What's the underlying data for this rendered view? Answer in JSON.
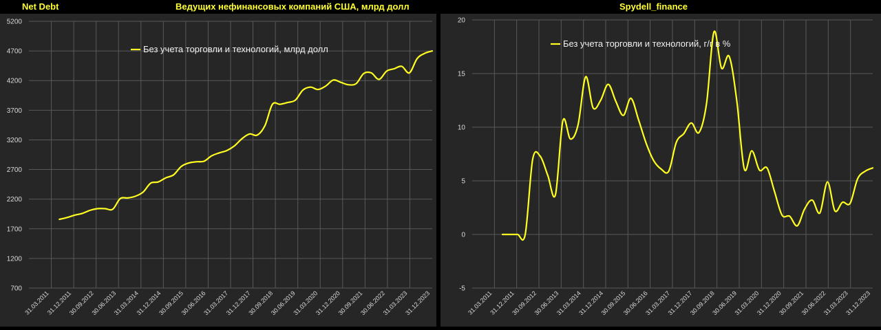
{
  "header": {
    "left_label": "Net Debt",
    "left_title": "Ведущих нефинансовых компаний США, млрд долл",
    "right_title": "Spydell_finance"
  },
  "colors": {
    "series": "#ffff22",
    "grid": "#595959",
    "axis_text": "#d9d9d9",
    "panel_bg": "#262626"
  },
  "chart_data": [
    {
      "type": "line",
      "title": "Ведущих нефинансовых компаний США, млрд долл",
      "x_tick_labels": [
        "31.03.2011",
        "31.12.2011",
        "30.09.2012",
        "30.06.2013",
        "31.03.2014",
        "31.12.2014",
        "30.09.2015",
        "30.06.2016",
        "31.03.2017",
        "31.12.2017",
        "30.09.2018",
        "30.06.2019",
        "31.03.2020",
        "31.12.2020",
        "30.09.2021",
        "30.06.2022",
        "31.03.2023",
        "31.12.2023"
      ],
      "x_range": [
        "2011-03-31",
        "2024-06-30"
      ],
      "ylim": [
        700,
        5200
      ],
      "yticks": [
        700,
        1200,
        1700,
        2200,
        2700,
        3200,
        3700,
        4200,
        4700,
        5200
      ],
      "grid": true,
      "legend_position": "top-center",
      "series": [
        {
          "name": "Без учета торговли и технологий, млрд долл",
          "points": [
            [
              "2012-03-31",
              1860
            ],
            [
              "2012-06-30",
              1890
            ],
            [
              "2012-09-30",
              1930
            ],
            [
              "2012-12-31",
              1960
            ],
            [
              "2013-03-31",
              2010
            ],
            [
              "2013-06-30",
              2040
            ],
            [
              "2013-09-30",
              2040
            ],
            [
              "2013-12-31",
              2030
            ],
            [
              "2014-03-31",
              2210
            ],
            [
              "2014-06-30",
              2220
            ],
            [
              "2014-09-30",
              2250
            ],
            [
              "2014-12-31",
              2320
            ],
            [
              "2015-03-31",
              2470
            ],
            [
              "2015-06-30",
              2490
            ],
            [
              "2015-09-30",
              2560
            ],
            [
              "2015-12-31",
              2610
            ],
            [
              "2016-03-31",
              2750
            ],
            [
              "2016-06-30",
              2810
            ],
            [
              "2016-09-30",
              2830
            ],
            [
              "2016-12-31",
              2840
            ],
            [
              "2017-03-31",
              2930
            ],
            [
              "2017-06-30",
              2980
            ],
            [
              "2017-09-30",
              3020
            ],
            [
              "2017-12-31",
              3100
            ],
            [
              "2018-03-31",
              3220
            ],
            [
              "2018-06-30",
              3300
            ],
            [
              "2018-09-30",
              3280
            ],
            [
              "2018-12-31",
              3440
            ],
            [
              "2019-03-31",
              3800
            ],
            [
              "2019-06-30",
              3800
            ],
            [
              "2019-09-30",
              3830
            ],
            [
              "2019-12-31",
              3870
            ],
            [
              "2020-03-31",
              4040
            ],
            [
              "2020-06-30",
              4090
            ],
            [
              "2020-09-30",
              4050
            ],
            [
              "2020-12-31",
              4110
            ],
            [
              "2021-03-31",
              4210
            ],
            [
              "2021-06-30",
              4170
            ],
            [
              "2021-09-30",
              4130
            ],
            [
              "2021-12-31",
              4150
            ],
            [
              "2022-03-31",
              4320
            ],
            [
              "2022-06-30",
              4330
            ],
            [
              "2022-09-30",
              4220
            ],
            [
              "2022-12-31",
              4360
            ],
            [
              "2023-03-31",
              4400
            ],
            [
              "2023-06-30",
              4440
            ],
            [
              "2023-09-30",
              4330
            ],
            [
              "2023-12-31",
              4570
            ],
            [
              "2024-03-31",
              4660
            ],
            [
              "2024-06-30",
              4700
            ]
          ]
        }
      ]
    },
    {
      "type": "line",
      "title": "",
      "x_tick_labels": [
        "31.03.2011",
        "31.12.2011",
        "30.09.2012",
        "30.06.2013",
        "31.03.2014",
        "31.12.2014",
        "30.09.2015",
        "30.06.2016",
        "31.03.2017",
        "31.12.2017",
        "30.09.2018",
        "30.06.2019",
        "31.03.2020",
        "31.12.2020",
        "30.09.2021",
        "30.06.2022",
        "31.03.2023",
        "31.12.2023"
      ],
      "x_range": [
        "2011-03-31",
        "2024-06-30"
      ],
      "ylim": [
        -5,
        20
      ],
      "yticks": [
        -5,
        0,
        5,
        10,
        15,
        20
      ],
      "grid": true,
      "legend_position": "top-center",
      "series": [
        {
          "name": "Без учета торговли и технологий, г/г в %",
          "points": [
            [
              "2012-03-31",
              0
            ],
            [
              "2012-06-30",
              0
            ],
            [
              "2012-09-30",
              0
            ],
            [
              "2012-12-31",
              0
            ],
            [
              "2013-03-31",
              7.0
            ],
            [
              "2013-06-30",
              7.3
            ],
            [
              "2013-09-30",
              5.5
            ],
            [
              "2013-12-31",
              3.7
            ],
            [
              "2014-03-31",
              10.6
            ],
            [
              "2014-06-30",
              8.9
            ],
            [
              "2014-09-30",
              10.2
            ],
            [
              "2014-12-31",
              14.7
            ],
            [
              "2015-03-31",
              11.8
            ],
            [
              "2015-06-30",
              12.5
            ],
            [
              "2015-09-30",
              14.0
            ],
            [
              "2015-12-31",
              12.4
            ],
            [
              "2016-03-31",
              11.1
            ],
            [
              "2016-06-30",
              12.7
            ],
            [
              "2016-09-30",
              10.7
            ],
            [
              "2016-12-31",
              8.5
            ],
            [
              "2017-03-31",
              6.9
            ],
            [
              "2017-06-30",
              6.1
            ],
            [
              "2017-09-30",
              5.9
            ],
            [
              "2017-12-31",
              8.6
            ],
            [
              "2018-03-31",
              9.4
            ],
            [
              "2018-06-30",
              10.4
            ],
            [
              "2018-09-30",
              9.5
            ],
            [
              "2018-12-31",
              12.2
            ],
            [
              "2019-03-31",
              18.9
            ],
            [
              "2019-06-30",
              15.5
            ],
            [
              "2019-09-30",
              16.6
            ],
            [
              "2019-12-31",
              12.5
            ],
            [
              "2020-03-31",
              6.1
            ],
            [
              "2020-06-30",
              7.8
            ],
            [
              "2020-09-30",
              6.0
            ],
            [
              "2020-12-31",
              6.2
            ],
            [
              "2021-03-31",
              4.0
            ],
            [
              "2021-06-30",
              1.8
            ],
            [
              "2021-09-30",
              1.7
            ],
            [
              "2021-12-31",
              0.8
            ],
            [
              "2022-03-31",
              2.4
            ],
            [
              "2022-06-30",
              3.2
            ],
            [
              "2022-09-30",
              2.0
            ],
            [
              "2022-12-31",
              4.9
            ],
            [
              "2023-03-31",
              2.2
            ],
            [
              "2023-06-30",
              3.0
            ],
            [
              "2023-09-30",
              2.9
            ],
            [
              "2023-12-31",
              5.2
            ],
            [
              "2024-03-31",
              5.9
            ],
            [
              "2024-06-30",
              6.2
            ]
          ]
        }
      ]
    }
  ]
}
